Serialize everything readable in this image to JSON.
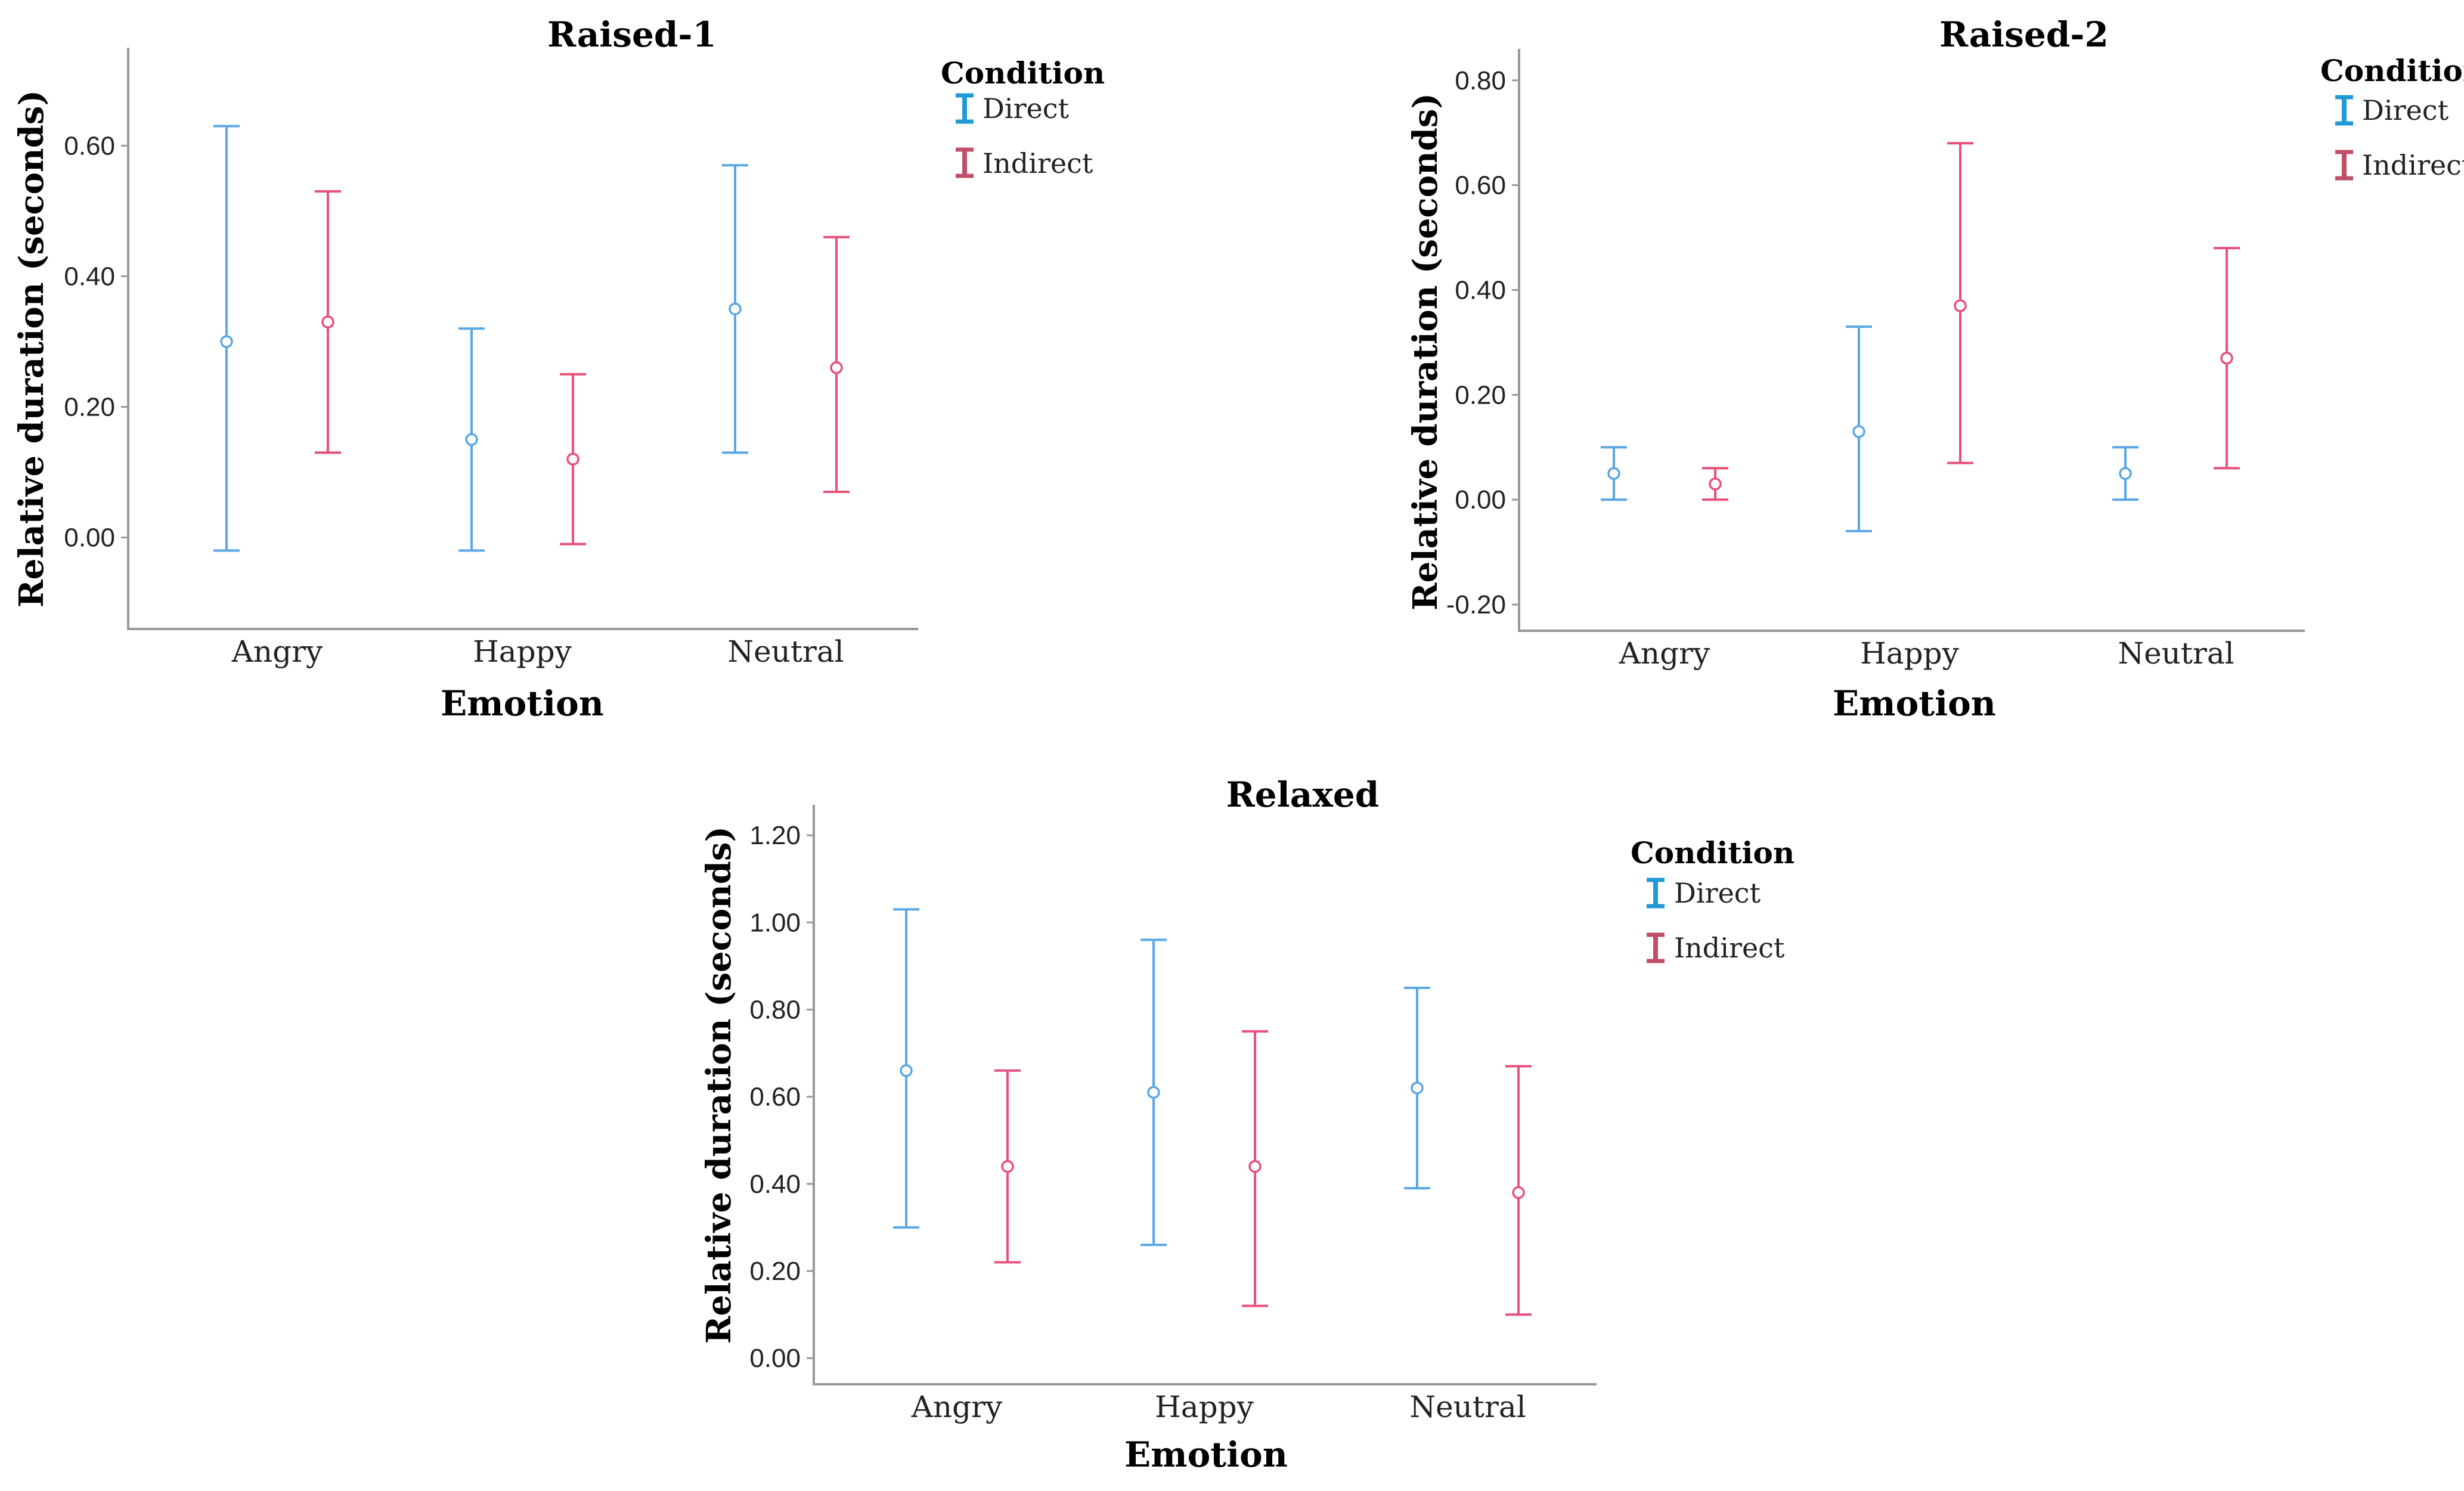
{
  "colors": {
    "direct": "#5aa7e6",
    "indirect": "#e8507a",
    "legend_direct": "#1f9ad6",
    "legend_indirect": "#c0506a"
  },
  "chart_data": [
    {
      "type": "errorbar",
      "title": "Raised-1",
      "xlabel": "Emotion",
      "ylabel": "Relative duration (seconds)",
      "categories": [
        "Angry",
        "Happy",
        "Neutral"
      ],
      "ylim": [
        -0.14,
        0.75
      ],
      "yticks": [
        0.0,
        0.2,
        0.4,
        0.6
      ],
      "ytick_labels": [
        "0.00",
        "0.20",
        "0.40",
        "0.60"
      ],
      "legend": {
        "title": "Condition",
        "entries": [
          "Direct",
          "Indirect"
        ]
      },
      "series": [
        {
          "name": "Direct",
          "means": [
            0.3,
            0.15,
            0.35
          ],
          "lower": [
            -0.02,
            -0.02,
            0.13
          ],
          "upper": [
            0.63,
            0.32,
            0.57
          ]
        },
        {
          "name": "Indirect",
          "means": [
            0.33,
            0.12,
            0.26
          ],
          "lower": [
            0.13,
            -0.01,
            0.07
          ],
          "upper": [
            0.53,
            0.25,
            0.46
          ]
        }
      ]
    },
    {
      "type": "errorbar",
      "title": "Raised-2",
      "xlabel": "Emotion",
      "ylabel": "Relative duration (seconds)",
      "categories": [
        "Angry",
        "Happy",
        "Neutral"
      ],
      "ylim": [
        -0.25,
        0.86
      ],
      "yticks": [
        -0.2,
        0.0,
        0.2,
        0.4,
        0.6,
        0.8
      ],
      "ytick_labels": [
        "-0.20",
        "0.00",
        "0.20",
        "0.40",
        "0.60",
        "0.80"
      ],
      "legend": {
        "title": "Condition",
        "entries": [
          "Direct",
          "Indirect"
        ]
      },
      "series": [
        {
          "name": "Direct",
          "means": [
            0.05,
            0.13,
            0.05
          ],
          "lower": [
            0.0,
            -0.06,
            0.0
          ],
          "upper": [
            0.1,
            0.33,
            0.1
          ]
        },
        {
          "name": "Indirect",
          "means": [
            0.03,
            0.37,
            0.27
          ],
          "lower": [
            0.0,
            0.07,
            0.06
          ],
          "upper": [
            0.06,
            0.68,
            0.48
          ]
        }
      ]
    },
    {
      "type": "errorbar",
      "title": "Relaxed",
      "xlabel": "Emotion",
      "ylabel": "Relative duration (seconds)",
      "categories": [
        "Angry",
        "Happy",
        "Neutral"
      ],
      "ylim": [
        -0.06,
        1.27
      ],
      "yticks": [
        0.0,
        0.2,
        0.4,
        0.6,
        0.8,
        1.0,
        1.2
      ],
      "ytick_labels": [
        "0.00",
        "0.20",
        "0.40",
        "0.60",
        "0.80",
        "1.00",
        "1.20"
      ],
      "legend": {
        "title": "Condition",
        "entries": [
          "Direct",
          "Indirect"
        ]
      },
      "series": [
        {
          "name": "Direct",
          "means": [
            0.66,
            0.61,
            0.62
          ],
          "lower": [
            0.3,
            0.26,
            0.39
          ],
          "upper": [
            1.03,
            0.96,
            0.85
          ]
        },
        {
          "name": "Indirect",
          "means": [
            0.44,
            0.44,
            0.38
          ],
          "lower": [
            0.22,
            0.12,
            0.1
          ],
          "upper": [
            0.66,
            0.75,
            0.67
          ]
        }
      ]
    }
  ]
}
